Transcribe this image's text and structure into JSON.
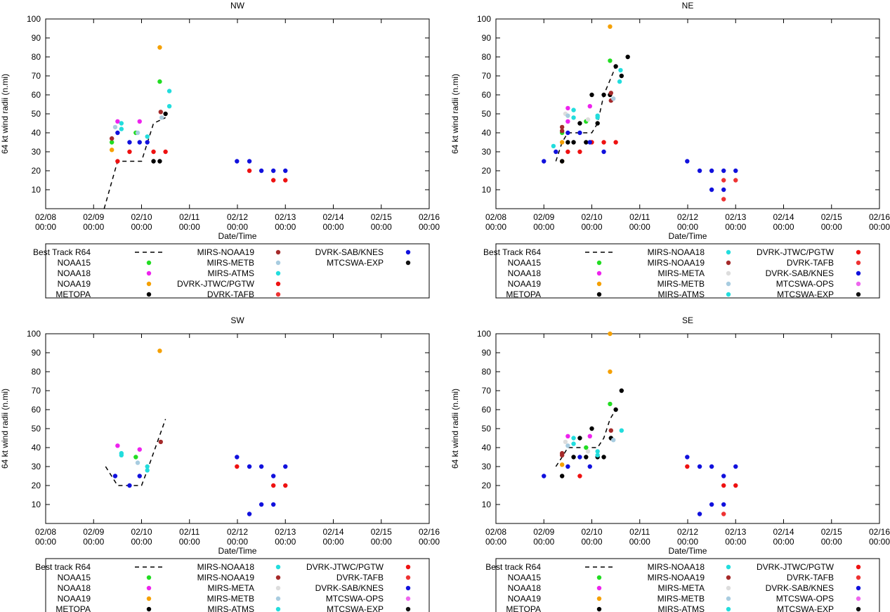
{
  "colors": {
    "NOAA15": "#22dd22",
    "NOAA18": "#ee22ee",
    "NOAA19": "#f5a000",
    "METOPA": "#000000",
    "MIRS-NOAA18": "#22dddd",
    "MIRS-NOAA19": "#a52a2a",
    "MIRS-META": "#dddddd",
    "MIRS-METB": "#a8cce0",
    "MIRS-ATMS": "#22dddd",
    "DVRK-JTWC/PGTW": "#ee1111",
    "DVRK-TAFB": "#ee3333",
    "DVRK-SAB/KNES": "#1111dd",
    "MTCSWA-OPS": "#ee66ee",
    "MTCSWA-EXP": "#111111"
  },
  "chart_data": [
    {
      "type": "scatter",
      "title": "NW",
      "xlabel": "Date/Time",
      "ylabel": "64 kt wind radii (n.mi)",
      "xlim": [
        0,
        8
      ],
      "ylim": [
        0,
        100
      ],
      "yticks": [
        10,
        20,
        30,
        40,
        50,
        60,
        70,
        80,
        90,
        100
      ],
      "xticks": [
        {
          "x": 0,
          "l1": "02/08",
          "l2": "00:00"
        },
        {
          "x": 1,
          "l1": "02/09",
          "l2": "00:00"
        },
        {
          "x": 2,
          "l1": "02/10",
          "l2": "00:00"
        },
        {
          "x": 3,
          "l1": "02/11",
          "l2": "00:00"
        },
        {
          "x": 4,
          "l1": "02/12",
          "l2": "00:00"
        },
        {
          "x": 5,
          "l1": "02/13",
          "l2": "00:00"
        },
        {
          "x": 6,
          "l1": "02/14",
          "l2": "00:00"
        },
        {
          "x": 7,
          "l1": "02/15",
          "l2": "00:00"
        },
        {
          "x": 8,
          "l1": "02/16",
          "l2": "00:00"
        }
      ],
      "legend_columns": [
        [
          "Best Track R64",
          "NOAA15",
          "NOAA18",
          "NOAA19",
          "METOPA"
        ],
        [
          "MIRS-NOAA19",
          "MIRS-METB",
          "MIRS-ATMS",
          "DVRK-JTWC/PGTW",
          "DVRK-TAFB"
        ],
        [
          "DVRK-SAB/KNES",
          "MTCSWA-EXP"
        ]
      ],
      "best_track": {
        "label": "Best Track R64",
        "x": [
          1.22,
          1.5,
          1.75,
          2.0,
          2.25,
          2.5
        ],
        "y": [
          0,
          25,
          25,
          25,
          45,
          48
        ]
      },
      "series": [
        {
          "name": "NOAA15",
          "x": [
            1.38,
            1.88,
            2.38
          ],
          "y": [
            35,
            40,
            67
          ]
        },
        {
          "name": "NOAA18",
          "x": [
            1.5,
            1.96
          ],
          "y": [
            46,
            46
          ]
        },
        {
          "name": "NOAA19",
          "x": [
            1.38,
            2.38
          ],
          "y": [
            31,
            85
          ]
        },
        {
          "name": "METOPA",
          "x": [
            2.25,
            2.38,
            2.5
          ],
          "y": [
            25,
            25,
            50
          ]
        },
        {
          "name": "MIRS-NOAA19",
          "x": [
            1.38,
            2.4
          ],
          "y": [
            37,
            51
          ]
        },
        {
          "name": "MIRS-METB",
          "x": [
            1.45,
            1.92,
            2.42
          ],
          "y": [
            43,
            40,
            48
          ]
        },
        {
          "name": "MIRS-ATMS",
          "x": [
            1.58,
            1.58,
            2.12,
            2.58,
            2.58
          ],
          "y": [
            45,
            42,
            38,
            54,
            62
          ]
        },
        {
          "name": "DVRK-JTWC/PGTW",
          "x": [
            1.5,
            1.75,
            2.25,
            2.5
          ],
          "y": [
            25,
            30,
            30,
            30
          ]
        },
        {
          "name": "DVRK-TAFB",
          "x": [],
          "y": []
        },
        {
          "name": "DVRK-SAB/KNES",
          "x": [
            1.5,
            1.75,
            1.96,
            2.12,
            3.99,
            4.25,
            4.5,
            4.75,
            5.0
          ],
          "y": [
            40,
            35,
            35,
            35,
            25,
            25,
            20,
            20,
            20
          ]
        },
        {
          "name": "MTCSWA-EXP",
          "x": [],
          "y": []
        },
        {
          "name": "DVRK-JTWC/PGTW",
          "x": [
            4.25,
            4.75,
            5.0
          ],
          "y": [
            20,
            15,
            15
          ]
        }
      ]
    },
    {
      "type": "scatter",
      "title": "NE",
      "xlabel": "Date/Time",
      "ylabel": "64 kt wind radii (n.mi)",
      "xlim": [
        0,
        8
      ],
      "ylim": [
        0,
        100
      ],
      "yticks": [
        10,
        20,
        30,
        40,
        50,
        60,
        70,
        80,
        90,
        100
      ],
      "xticks": [
        {
          "x": 0,
          "l1": "02/08",
          "l2": "00:00"
        },
        {
          "x": 1,
          "l1": "02/09",
          "l2": "00:00"
        },
        {
          "x": 2,
          "l1": "02/10",
          "l2": "00:00"
        },
        {
          "x": 3,
          "l1": "02/11",
          "l2": "00:00"
        },
        {
          "x": 4,
          "l1": "02/12",
          "l2": "00:00"
        },
        {
          "x": 5,
          "l1": "02/13",
          "l2": "00:00"
        },
        {
          "x": 6,
          "l1": "02/14",
          "l2": "00:00"
        },
        {
          "x": 7,
          "l1": "02/15",
          "l2": "00:00"
        },
        {
          "x": 8,
          "l1": "02/16",
          "l2": "00:00"
        }
      ],
      "legend_columns": [
        [
          "Best Track R64",
          "NOAA15",
          "NOAA18",
          "NOAA19",
          "METOPA"
        ],
        [
          "MIRS-NOAA18",
          "MIRS-NOAA19",
          "MIRS-META",
          "MIRS-METB",
          "MIRS-ATMS"
        ],
        [
          "DVRK-JTWC/PGTW",
          "DVRK-TAFB",
          "DVRK-SAB/KNES",
          "MTCSWA-OPS",
          "MTCSWA-EXP"
        ]
      ],
      "best_track": {
        "label": "Best Track R64",
        "x": [
          1.25,
          1.38,
          1.5,
          1.75,
          2.0,
          2.12,
          2.25,
          2.5,
          2.58
        ],
        "y": [
          25,
          35,
          40,
          40,
          40,
          45,
          60,
          75,
          75
        ]
      },
      "series": [
        {
          "name": "NOAA15",
          "x": [
            1.38,
            1.88,
            2.38
          ],
          "y": [
            40,
            46,
            78
          ]
        },
        {
          "name": "NOAA18",
          "x": [
            1.5,
            1.5,
            1.96
          ],
          "y": [
            53,
            46,
            54
          ]
        },
        {
          "name": "NOAA19",
          "x": [
            1.38,
            1.38,
            2.38
          ],
          "y": [
            25,
            35,
            96
          ]
        },
        {
          "name": "METOPA",
          "x": [
            1.38,
            1.5,
            1.62,
            1.75,
            1.88,
            2.0,
            2.12,
            2.25,
            2.38,
            2.5,
            2.62,
            2.75
          ],
          "y": [
            25,
            35,
            35,
            45,
            35,
            60,
            45,
            60,
            60,
            75,
            70,
            80
          ]
        },
        {
          "name": "MIRS-NOAA18",
          "x": [
            1.2,
            1.62,
            2.12,
            2.58,
            2.6
          ],
          "y": [
            33,
            52,
            49,
            67,
            73
          ]
        },
        {
          "name": "MIRS-NOAA19",
          "x": [
            1.38,
            1.38,
            2.4,
            2.4
          ],
          "y": [
            43,
            41,
            57,
            61
          ]
        },
        {
          "name": "MIRS-META",
          "x": [
            1.45,
            1.92
          ],
          "y": [
            50,
            47
          ]
        },
        {
          "name": "MIRS-METB",
          "x": [
            1.5,
            2.45
          ],
          "y": [
            49,
            58
          ]
        },
        {
          "name": "MIRS-ATMS",
          "x": [
            1.62,
            2.12
          ],
          "y": [
            48,
            48
          ]
        },
        {
          "name": "DVRK-JTWC/PGTW",
          "x": [
            1.5,
            1.75,
            2.0,
            2.25,
            2.5
          ],
          "y": [
            30,
            30,
            35,
            35,
            35
          ]
        },
        {
          "name": "DVRK-SAB/KNES",
          "x": [
            1.0,
            1.25,
            1.5,
            1.75,
            1.96,
            2.25,
            3.99,
            4.25,
            4.5,
            4.5,
            4.75,
            4.75,
            5.0
          ],
          "y": [
            25,
            30,
            40,
            40,
            35,
            30,
            25,
            20,
            20,
            10,
            20,
            10,
            20
          ]
        },
        {
          "name": "DVRK-TAFB",
          "x": [
            4.75,
            4.75,
            5.0
          ],
          "y": [
            15,
            5,
            15
          ]
        }
      ]
    },
    {
      "type": "scatter",
      "title": "SW",
      "xlabel": "Date/Time",
      "ylabel": "64 kt wind radii (n.mi)",
      "xlim": [
        0,
        8
      ],
      "ylim": [
        0,
        100
      ],
      "yticks": [
        10,
        20,
        30,
        40,
        50,
        60,
        70,
        80,
        90,
        100
      ],
      "xticks": [
        {
          "x": 0,
          "l1": "02/08",
          "l2": "00:00"
        },
        {
          "x": 1,
          "l1": "02/09",
          "l2": "00:00"
        },
        {
          "x": 2,
          "l1": "02/10",
          "l2": "00:00"
        },
        {
          "x": 3,
          "l1": "02/11",
          "l2": "00:00"
        },
        {
          "x": 4,
          "l1": "02/12",
          "l2": "00:00"
        },
        {
          "x": 5,
          "l1": "02/13",
          "l2": "00:00"
        },
        {
          "x": 6,
          "l1": "02/14",
          "l2": "00:00"
        },
        {
          "x": 7,
          "l1": "02/15",
          "l2": "00:00"
        },
        {
          "x": 8,
          "l1": "02/16",
          "l2": "00:00"
        }
      ],
      "legend_columns": [
        [
          "Best track R64",
          "NOAA15",
          "NOAA18",
          "NOAA19",
          "METOPA"
        ],
        [
          "MIRS-NOAA18",
          "MIRS-NOAA19",
          "MIRS-META",
          "MIRS-METB",
          "MIRS-ATMS"
        ],
        [
          "DVRK-JTWC/PGTW",
          "DVRK-TAFB",
          "DVRK-SAB/KNES",
          "MTCSWA-OPS",
          "MTCSWA-EXP"
        ]
      ],
      "best_track": {
        "label": "Best track R64",
        "x": [
          1.25,
          1.5,
          1.75,
          2.0,
          2.12,
          2.5
        ],
        "y": [
          30,
          20,
          20,
          20,
          28,
          55
        ]
      },
      "series": [
        {
          "name": "NOAA15",
          "x": [
            1.88
          ],
          "y": [
            35
          ]
        },
        {
          "name": "NOAA18",
          "x": [
            1.5,
            1.96
          ],
          "y": [
            41,
            39
          ]
        },
        {
          "name": "NOAA19",
          "x": [
            2.38
          ],
          "y": [
            91
          ]
        },
        {
          "name": "MIRS-NOAA18",
          "x": [
            1.58,
            1.58,
            2.12,
            2.12
          ],
          "y": [
            37,
            36,
            30,
            28
          ]
        },
        {
          "name": "MIRS-NOAA19",
          "x": [
            2.4
          ],
          "y": [
            43
          ]
        },
        {
          "name": "MIRS-METB",
          "x": [
            1.92
          ],
          "y": [
            32
          ]
        },
        {
          "name": "DVRK-JTWC/PGTW",
          "x": [
            3.99,
            4.75,
            5.0
          ],
          "y": [
            30,
            20,
            20
          ]
        },
        {
          "name": "DVRK-SAB/KNES",
          "x": [
            1.45,
            1.75,
            1.96,
            3.99,
            4.25,
            4.25,
            4.5,
            4.5,
            4.75,
            4.75,
            5.0
          ],
          "y": [
            25,
            20,
            25,
            35,
            30,
            5,
            30,
            10,
            25,
            10,
            30
          ]
        }
      ]
    },
    {
      "type": "scatter",
      "title": "SE",
      "xlabel": "Date/Time",
      "ylabel": "64 kt wind radii (n.mi)",
      "xlim": [
        0,
        8
      ],
      "ylim": [
        0,
        100
      ],
      "yticks": [
        10,
        20,
        30,
        40,
        50,
        60,
        70,
        80,
        90,
        100
      ],
      "xticks": [
        {
          "x": 0,
          "l1": "02/08",
          "l2": "00:00"
        },
        {
          "x": 1,
          "l1": "02/09",
          "l2": "00:00"
        },
        {
          "x": 2,
          "l1": "02/10",
          "l2": "00:00"
        },
        {
          "x": 3,
          "l1": "02/11",
          "l2": "00:00"
        },
        {
          "x": 4,
          "l1": "02/12",
          "l2": "00:00"
        },
        {
          "x": 5,
          "l1": "02/13",
          "l2": "00:00"
        },
        {
          "x": 6,
          "l1": "02/14",
          "l2": "00:00"
        },
        {
          "x": 7,
          "l1": "02/15",
          "l2": "00:00"
        },
        {
          "x": 8,
          "l1": "02/16",
          "l2": "00:00"
        }
      ],
      "legend_columns": [
        [
          "Best track R64",
          "NOAA15",
          "NOAA18",
          "NOAA19",
          "METOPA"
        ],
        [
          "MIRS-NOAA18",
          "MIRS-NOAA19",
          "MIRS-META",
          "MIRS-METB",
          "MIRS-ATMS"
        ],
        [
          "DVRK-JTWC/PGTW",
          "DVRK-TAFB",
          "DVRK-SAB/KNES",
          "MTCSWA-OPS",
          "MTCSWA-EXP"
        ]
      ],
      "best_track": {
        "label": "Best track R64",
        "x": [
          1.25,
          1.38,
          1.5,
          1.75,
          2.0,
          2.12,
          2.25,
          2.38,
          2.5
        ],
        "y": [
          30,
          35,
          40,
          40,
          40,
          40,
          45,
          55,
          60
        ]
      },
      "series": [
        {
          "name": "NOAA15",
          "x": [
            1.88,
            2.38
          ],
          "y": [
            40,
            63
          ]
        },
        {
          "name": "NOAA18",
          "x": [
            1.5,
            1.96
          ],
          "y": [
            46,
            46
          ]
        },
        {
          "name": "NOAA19",
          "x": [
            1.38,
            2.38,
            2.38
          ],
          "y": [
            31,
            80,
            100
          ]
        },
        {
          "name": "METOPA",
          "x": [
            1.38,
            1.62,
            1.75,
            1.88,
            2.0,
            2.12,
            2.25,
            2.4,
            2.5,
            2.62
          ],
          "y": [
            25,
            35,
            45,
            35,
            50,
            35,
            35,
            45,
            60,
            70
          ]
        },
        {
          "name": "MIRS-NOAA18",
          "x": [
            1.62,
            2.12,
            2.62
          ],
          "y": [
            45,
            38,
            49
          ]
        },
        {
          "name": "MIRS-NOAA19",
          "x": [
            1.38,
            1.38,
            2.4
          ],
          "y": [
            36,
            37,
            49
          ]
        },
        {
          "name": "MIRS-META",
          "x": [
            1.45,
            1.92
          ],
          "y": [
            43,
            38
          ]
        },
        {
          "name": "MIRS-METB",
          "x": [
            1.5,
            2.45
          ],
          "y": [
            41,
            44
          ]
        },
        {
          "name": "MIRS-ATMS",
          "x": [
            1.62,
            2.12
          ],
          "y": [
            42,
            36
          ]
        },
        {
          "name": "DVRK-JTWC/PGTW",
          "x": [
            1.75,
            3.99,
            4.75,
            5.0
          ],
          "y": [
            25,
            30,
            20,
            20
          ]
        },
        {
          "name": "DVRK-SAB/KNES",
          "x": [
            1.0,
            1.5,
            1.75,
            1.96,
            3.99,
            4.25,
            4.25,
            4.5,
            4.5,
            4.75,
            4.75,
            5.0
          ],
          "y": [
            25,
            30,
            35,
            30,
            35,
            30,
            5,
            30,
            10,
            25,
            10,
            30
          ]
        },
        {
          "name": "DVRK-TAFB",
          "x": [
            4.75
          ],
          "y": [
            5
          ]
        }
      ]
    }
  ]
}
